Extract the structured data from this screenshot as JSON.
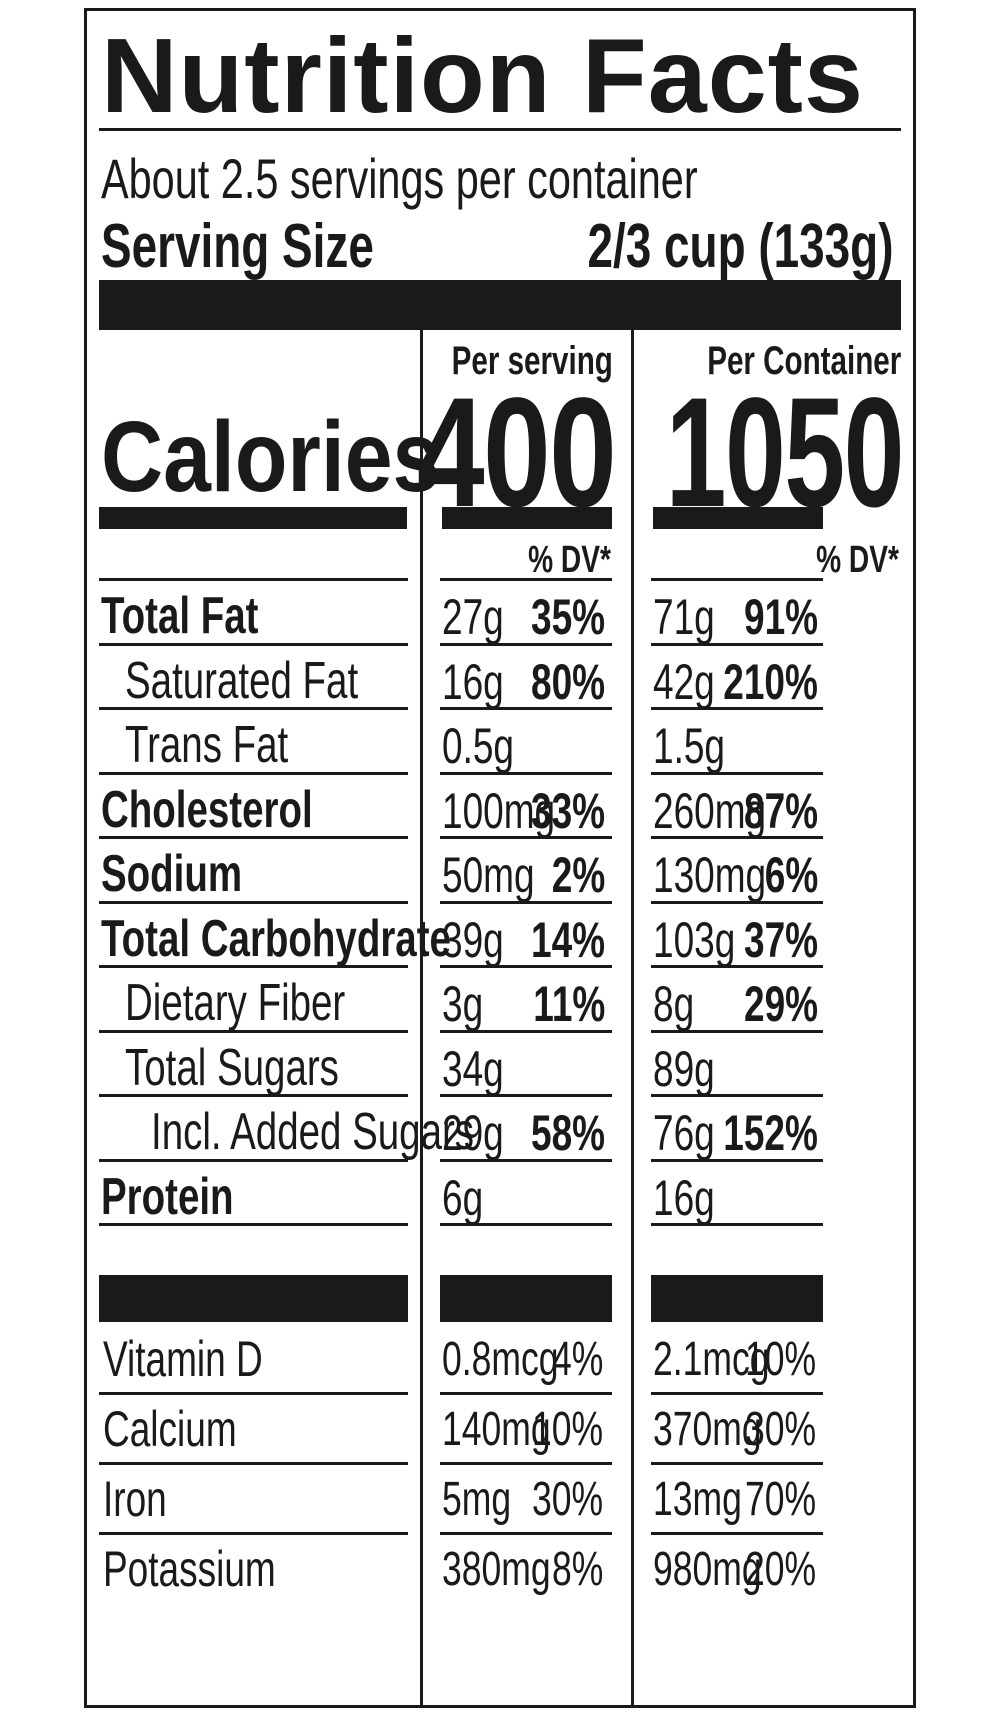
{
  "title": "Nutrition Facts",
  "servings_per_container": "About 2.5 servings per container",
  "serving_size_label": "Serving Size",
  "serving_size_value": "2/3 cup (133g)",
  "columns": {
    "per_serving": "Per serving",
    "per_container": "Per Container"
  },
  "calories": {
    "label": "Calories",
    "per_serving": "400",
    "per_container": "1050"
  },
  "dv_header": "% DV*",
  "nutrients": [
    {
      "name": "Total Fat",
      "bold": true,
      "indent": 0,
      "serving_amount": "27g",
      "serving_dv": "35%",
      "container_amount": "71g",
      "container_dv": "91%"
    },
    {
      "name": "Saturated Fat",
      "bold": false,
      "indent": 1,
      "serving_amount": "16g",
      "serving_dv": "80%",
      "container_amount": "42g",
      "container_dv": "210%"
    },
    {
      "name": "Trans Fat",
      "bold": false,
      "indent": 1,
      "serving_amount": "0.5g",
      "serving_dv": "",
      "container_amount": "1.5g",
      "container_dv": ""
    },
    {
      "name": "Cholesterol",
      "bold": true,
      "indent": 0,
      "serving_amount": "100mg",
      "serving_dv": "33%",
      "container_amount": "260mg",
      "container_dv": "87%"
    },
    {
      "name": "Sodium",
      "bold": true,
      "indent": 0,
      "serving_amount": "50mg",
      "serving_dv": "2%",
      "container_amount": "130mg",
      "container_dv": "6%"
    },
    {
      "name": "Total Carbohydrate",
      "bold": true,
      "indent": 0,
      "serving_amount": "39g",
      "serving_dv": "14%",
      "container_amount": "103g",
      "container_dv": "37%"
    },
    {
      "name": "Dietary Fiber",
      "bold": false,
      "indent": 1,
      "serving_amount": "3g",
      "serving_dv": "11%",
      "container_amount": "8g",
      "container_dv": "29%"
    },
    {
      "name": "Total Sugars",
      "bold": false,
      "indent": 1,
      "serving_amount": "34g",
      "serving_dv": "",
      "container_amount": "89g",
      "container_dv": ""
    },
    {
      "name": "Incl. Added Sugars",
      "bold": false,
      "indent": 2,
      "serving_amount": "29g",
      "serving_dv": "58%",
      "container_amount": "76g",
      "container_dv": "152%"
    },
    {
      "name": "Protein",
      "bold": true,
      "indent": 0,
      "serving_amount": "6g",
      "serving_dv": "",
      "container_amount": "16g",
      "container_dv": ""
    }
  ],
  "vitamins": [
    {
      "name": "Vitamin D",
      "serving_amount": "0.8mcg",
      "serving_dv": "4%",
      "container_amount": "2.1mcg",
      "container_dv": "10%"
    },
    {
      "name": "Calcium",
      "serving_amount": "140mg",
      "serving_dv": "10%",
      "container_amount": "370mg",
      "container_dv": "30%"
    },
    {
      "name": "Iron",
      "serving_amount": "5mg",
      "serving_dv": "30%",
      "container_amount": "13mg",
      "container_dv": "70%"
    },
    {
      "name": "Potassium",
      "serving_amount": "380mg",
      "serving_dv": "8%",
      "container_amount": "980mg",
      "container_dv": "20%"
    }
  ]
}
